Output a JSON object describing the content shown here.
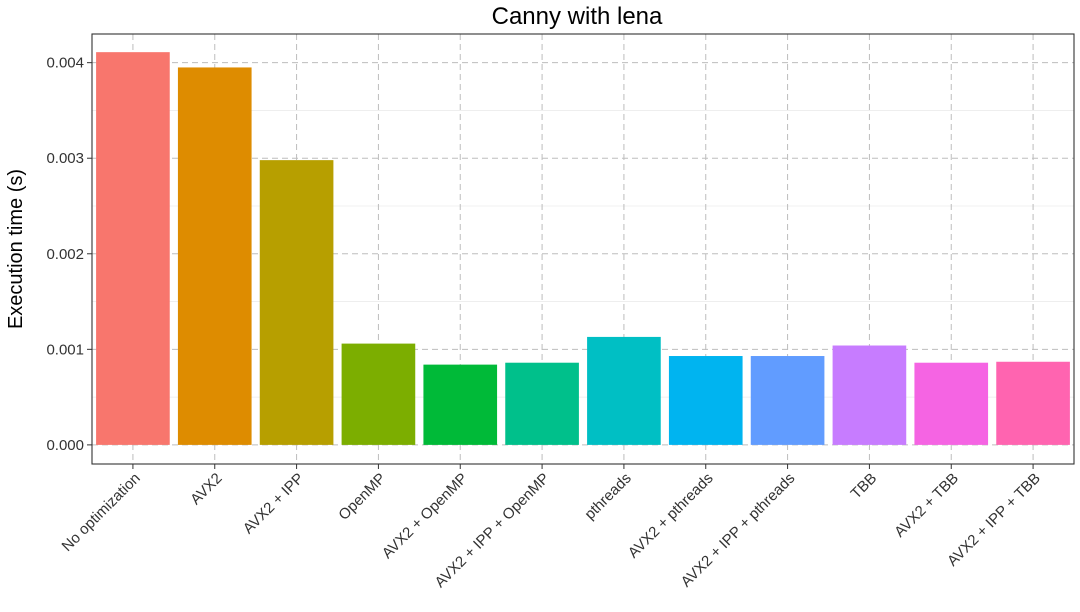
{
  "chart_data": {
    "type": "bar",
    "title": "Canny with lena",
    "xlabel": "",
    "ylabel": "Execution time (s)",
    "categories": [
      "No optimization",
      "AVX2",
      "AVX2 + IPP",
      "OpenMP",
      "AVX2 + OpenMP",
      "AVX2 + IPP + OpenMP",
      "pthreads",
      "AVX2 + pthreads",
      "AVX2 + IPP + pthreads",
      "TBB",
      "AVX2 + TBB",
      "AVX2 + IPP + TBB"
    ],
    "values": [
      0.00411,
      0.00395,
      0.00298,
      0.00106,
      0.00084,
      0.00086,
      0.00113,
      0.00093,
      0.00093,
      0.00104,
      0.00086,
      0.00087
    ],
    "colors": [
      "#F8766D",
      "#DE8C00",
      "#B79F00",
      "#7CAE00",
      "#00BA38",
      "#00C08B",
      "#00BFC4",
      "#00B4F0",
      "#619CFF",
      "#C77CFF",
      "#F564E3",
      "#FF64B0"
    ],
    "yticks": [
      0.0,
      0.001,
      0.002,
      0.003,
      0.004
    ],
    "ytick_labels": [
      "0.000",
      "0.001",
      "0.002",
      "0.003",
      "0.004"
    ],
    "ylim": [
      -0.0002,
      0.0043
    ],
    "grid": true,
    "legend": "none"
  }
}
